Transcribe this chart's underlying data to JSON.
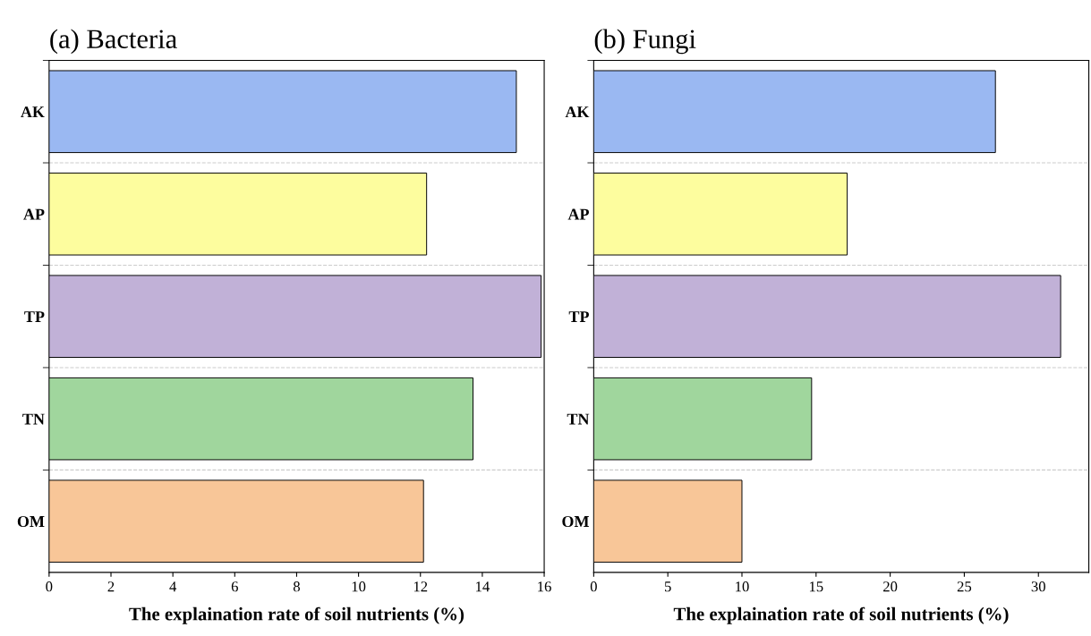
{
  "chart_data": [
    {
      "type": "bar",
      "orientation": "horizontal",
      "title": "(a) Bacteria",
      "xlabel": "The explaination rate of soil nutrients (%)",
      "categories": [
        "AK",
        "AP",
        "TP",
        "TN",
        "OM"
      ],
      "values": [
        15.1,
        12.2,
        15.9,
        13.7,
        12.1
      ],
      "colors": [
        "#9ab8f2",
        "#fdfd9e",
        "#c1b1d7",
        "#a0d69d",
        "#f8c698"
      ],
      "xlim": [
        0,
        16
      ],
      "xticks": [
        0,
        2,
        4,
        6,
        8,
        10,
        12,
        14,
        16
      ],
      "grid": "y",
      "legend": false
    },
    {
      "type": "bar",
      "orientation": "horizontal",
      "title": "(b) Fungi",
      "xlabel": "The explaination rate of soil nutrients (%)",
      "categories": [
        "AK",
        "AP",
        "TP",
        "TN",
        "OM"
      ],
      "values": [
        27.1,
        17.1,
        31.5,
        14.7,
        10.0
      ],
      "colors": [
        "#9ab8f2",
        "#fdfd9e",
        "#c1b1d7",
        "#a0d69d",
        "#f8c698"
      ],
      "xlim": [
        0,
        33.4
      ],
      "xticks": [
        0,
        5,
        10,
        15,
        20,
        25,
        30
      ],
      "grid": "y",
      "legend": false
    }
  ]
}
